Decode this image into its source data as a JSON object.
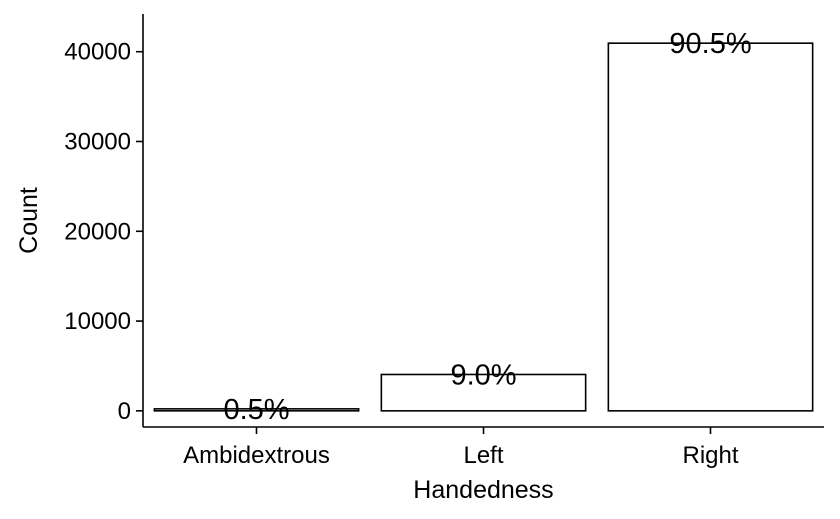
{
  "chart_data": {
    "type": "bar",
    "categories": [
      "Ambidextrous",
      "Left",
      "Right"
    ],
    "values": [
      220,
      4050,
      40950
    ],
    "data_labels": [
      "0.5%",
      "9.0%",
      "90.5%"
    ],
    "xlabel": "Handedness",
    "ylabel": "Count",
    "ylim": [
      -1800,
      44200
    ],
    "yticks": [
      0,
      10000,
      20000,
      30000,
      40000
    ],
    "grid": false,
    "legend": "none",
    "colors": {
      "bar_fill": "#ffffff",
      "bar_stroke": "#000000",
      "axis": "#000000"
    }
  }
}
